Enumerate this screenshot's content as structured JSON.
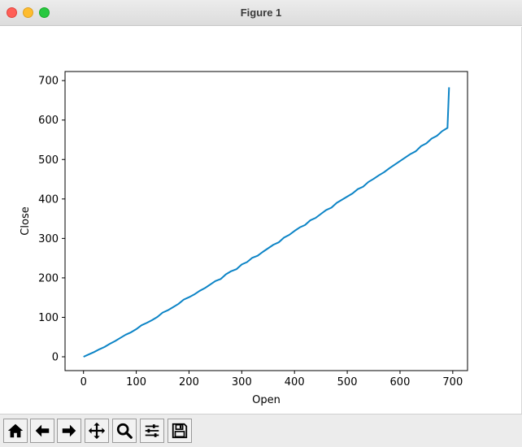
{
  "window": {
    "title": "Figure 1"
  },
  "toolbar": {
    "buttons": [
      {
        "name": "home",
        "icon": "home-icon"
      },
      {
        "name": "back",
        "icon": "arrow-left-icon"
      },
      {
        "name": "forward",
        "icon": "arrow-right-icon"
      },
      {
        "name": "pan",
        "icon": "move-icon"
      },
      {
        "name": "zoom",
        "icon": "zoom-icon"
      },
      {
        "name": "configure-subplots",
        "icon": "sliders-icon"
      },
      {
        "name": "save",
        "icon": "save-icon"
      }
    ]
  },
  "chart_data": {
    "type": "line",
    "title": "",
    "xlabel": "Open",
    "ylabel": "Close",
    "xlim": [
      -35,
      728
    ],
    "ylim": [
      -35,
      723
    ],
    "xticks": [
      0,
      100,
      200,
      300,
      400,
      500,
      600,
      700
    ],
    "yticks": [
      0,
      100,
      200,
      300,
      400,
      500,
      600,
      700
    ],
    "grid": false,
    "color": "#0c84c6",
    "series": [
      {
        "x": [
          0,
          10,
          20,
          30,
          40,
          50,
          60,
          70,
          80,
          90,
          100,
          110,
          120,
          130,
          140,
          150,
          160,
          170,
          180,
          190,
          200,
          210,
          220,
          230,
          240,
          250,
          260,
          270,
          280,
          290,
          300,
          310,
          320,
          330,
          340,
          350,
          360,
          370,
          380,
          390,
          400,
          410,
          420,
          430,
          440,
          450,
          460,
          470,
          480,
          490,
          500,
          510,
          520,
          530,
          540,
          550,
          560,
          570,
          580,
          590,
          600,
          610,
          620,
          630,
          640,
          650,
          660,
          670,
          680,
          690,
          693
        ],
        "y": [
          0,
          6,
          12,
          19,
          25,
          33,
          40,
          48,
          56,
          62,
          70,
          80,
          86,
          93,
          101,
          112,
          118,
          126,
          134,
          145,
          151,
          158,
          167,
          174,
          183,
          192,
          197,
          209,
          217,
          222,
          234,
          240,
          251,
          256,
          266,
          275,
          284,
          290,
          302,
          309,
          319,
          328,
          334,
          346,
          352,
          362,
          372,
          378,
          390,
          398,
          406,
          414,
          425,
          431,
          443,
          451,
          460,
          468,
          478,
          487,
          496,
          505,
          514,
          521,
          534,
          541,
          553,
          560,
          572,
          580,
          683
        ]
      }
    ]
  }
}
